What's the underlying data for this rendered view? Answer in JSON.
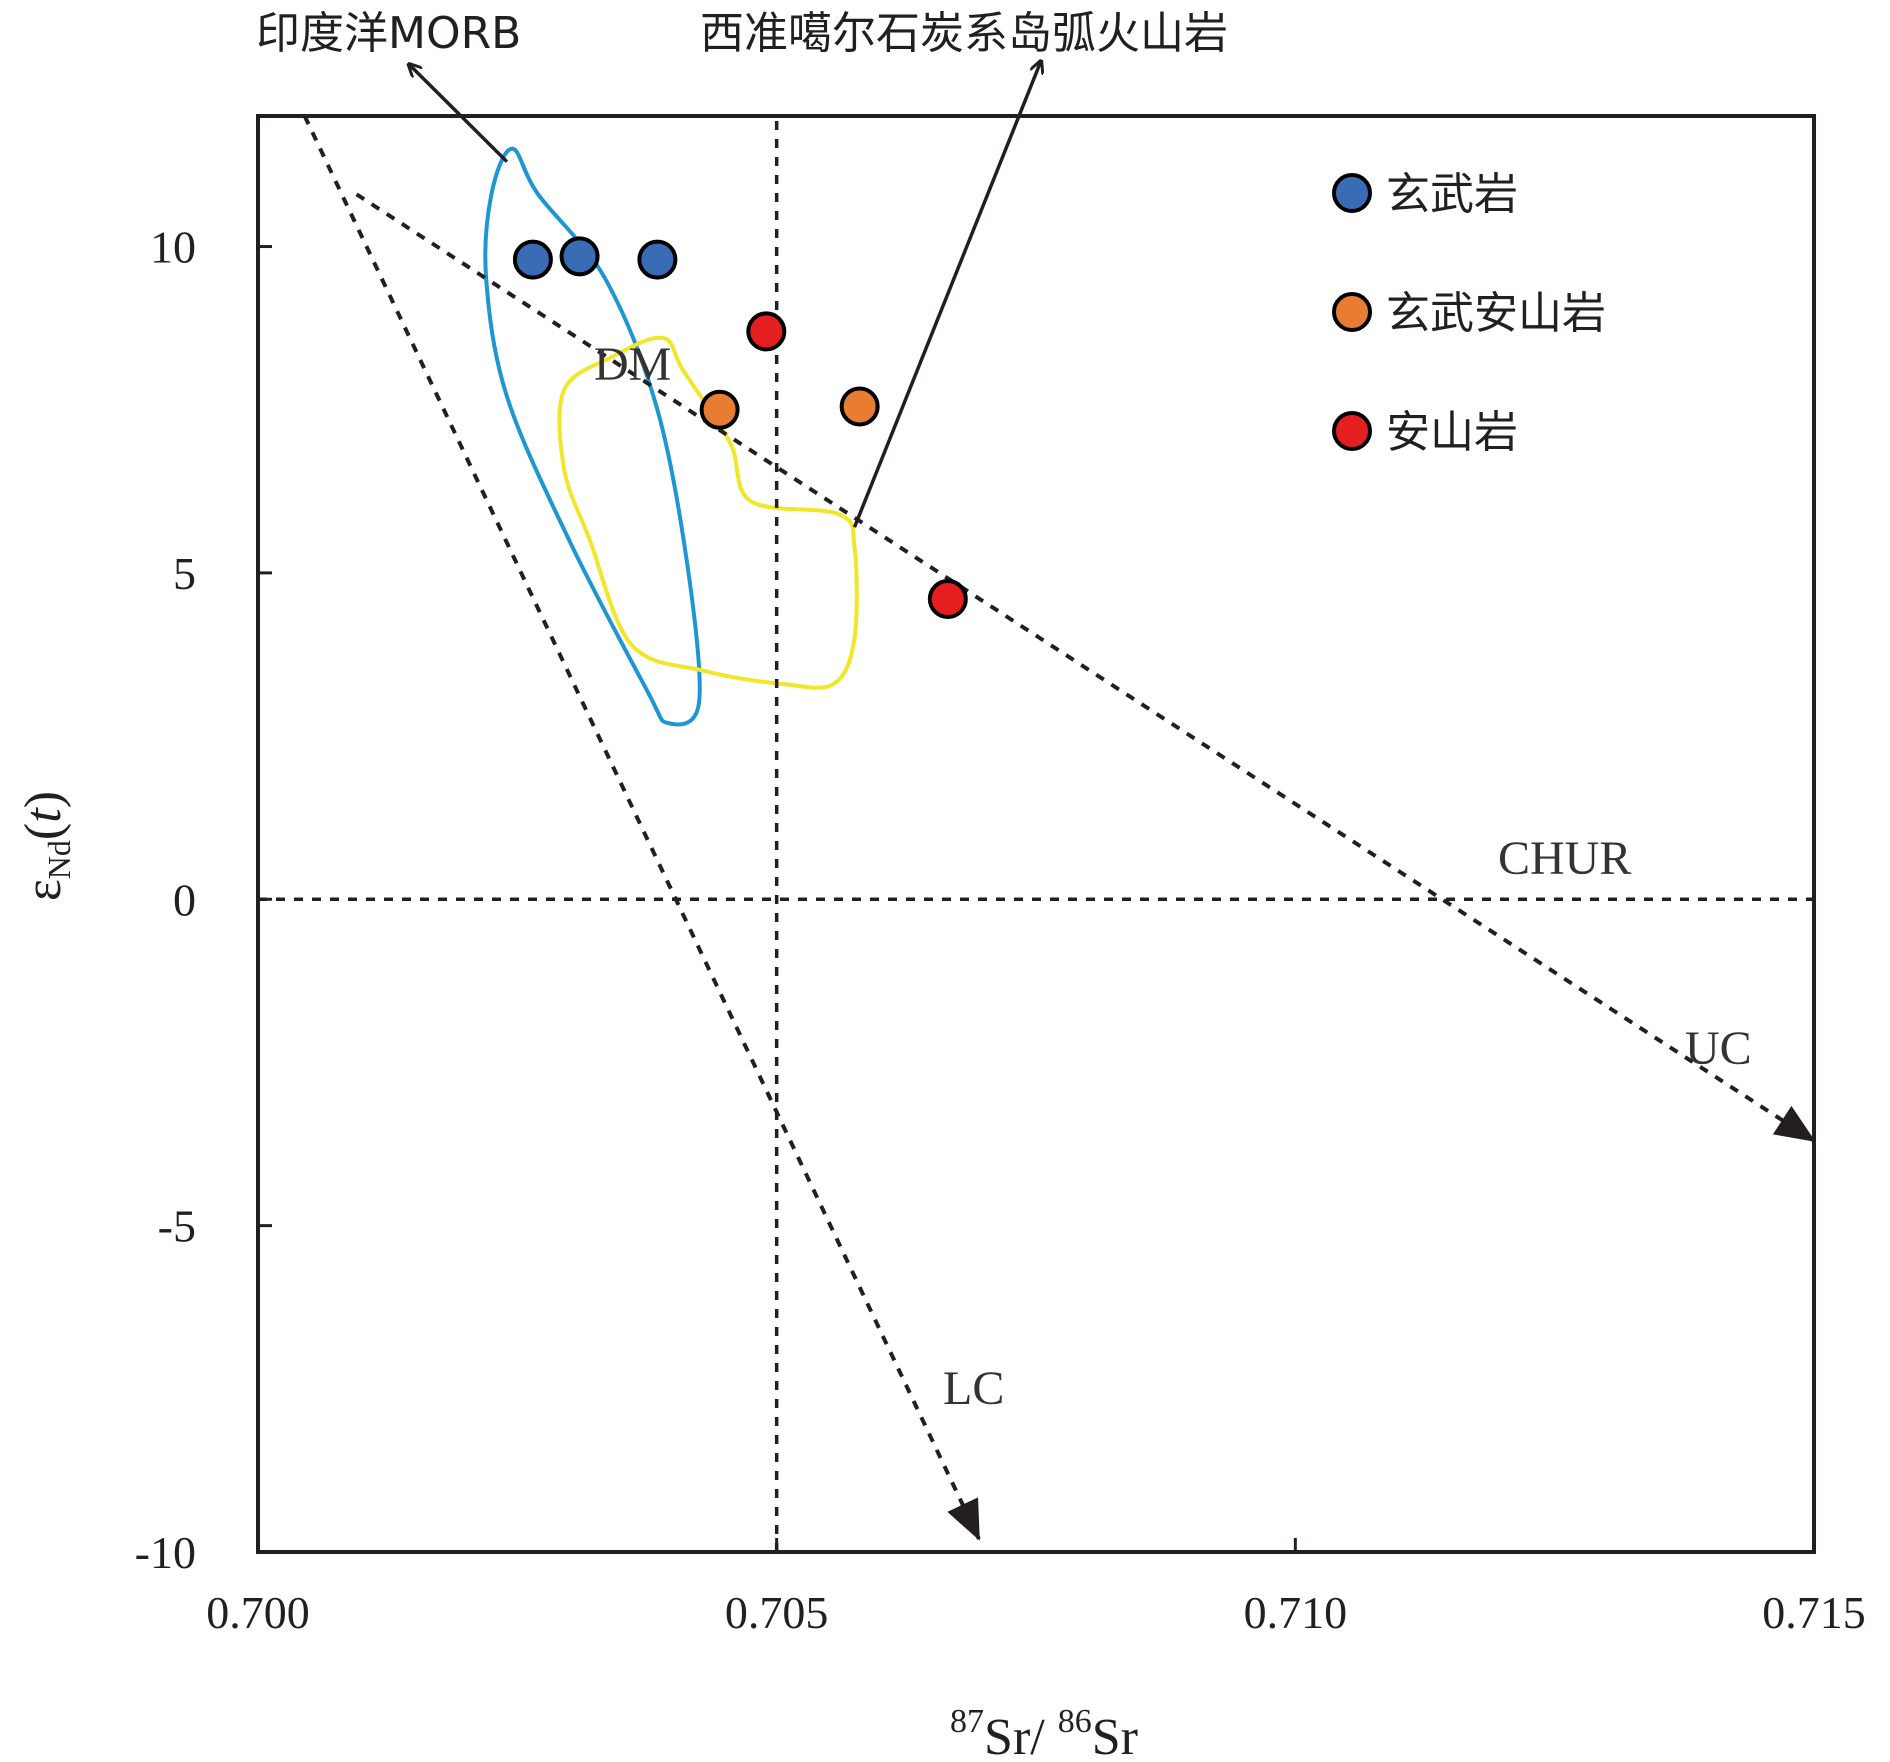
{
  "chart_data": {
    "type": "scatter",
    "xlabel": {
      "sup1": "87",
      "t1": "Sr/ ",
      "sup2": "86",
      "t2": "Sr"
    },
    "ylabel": {
      "eps": "ε",
      "sub": "Nd",
      "paren_open": "(",
      "t": "t",
      "paren_close": ")"
    },
    "xlim": [
      0.7,
      0.715
    ],
    "ylim": [
      -10,
      12
    ],
    "xticks": [
      "0.700",
      "0.705",
      "0.710",
      "0.715"
    ],
    "yticks": [
      "-10",
      "-5",
      "0",
      "5",
      "10"
    ],
    "series": [
      {
        "name": "玄武岩",
        "color": "#3a6bb5",
        "points": [
          [
            0.70265,
            9.8
          ],
          [
            0.7031,
            9.85
          ],
          [
            0.70385,
            9.8
          ]
        ]
      },
      {
        "name": "玄武安山岩",
        "color": "#e87d32",
        "points": [
          [
            0.70445,
            7.5
          ],
          [
            0.7058,
            7.55
          ]
        ]
      },
      {
        "name": "安山岩",
        "color": "#e51f1f",
        "points": [
          [
            0.7049,
            8.7
          ],
          [
            0.70665,
            4.6
          ]
        ]
      }
    ],
    "reference_lines": {
      "chur": {
        "label": "CHUR",
        "y": 0,
        "x_start": 0.7,
        "x_end": 0.715
      },
      "vertical": {
        "x": 0.705,
        "y_start": -10,
        "y_end": 12
      },
      "uc": {
        "label": "UC",
        "from": [
          0.70095,
          10.8
        ],
        "to": [
          0.715,
          -3.7
        ]
      },
      "lc": {
        "label": "LC",
        "from": [
          0.70045,
          12.0
        ],
        "to": [
          0.70695,
          -9.8
        ]
      }
    },
    "fields": [
      {
        "label": "印度洋MORB",
        "color": "#1e96d2",
        "outline": [
          [
            0.70245,
            11.5
          ],
          [
            0.7027,
            10.8
          ],
          [
            0.70335,
            9.5
          ],
          [
            0.70385,
            7.5
          ],
          [
            0.70415,
            5.0
          ],
          [
            0.70425,
            3.0
          ],
          [
            0.70395,
            2.7
          ],
          [
            0.70375,
            3.2
          ],
          [
            0.703,
            5.5
          ],
          [
            0.7024,
            7.7
          ],
          [
            0.7022,
            9.5
          ],
          [
            0.70225,
            10.8
          ]
        ]
      },
      {
        "label": "西准噶尔石炭系岛弧火山岩",
        "color": "#f2e62a",
        "outline": [
          [
            0.7039,
            8.6
          ],
          [
            0.7041,
            8.1
          ],
          [
            0.70455,
            7.0
          ],
          [
            0.70475,
            6.1
          ],
          [
            0.7056,
            5.9
          ],
          [
            0.70575,
            5.4
          ],
          [
            0.70575,
            4.0
          ],
          [
            0.70555,
            3.3
          ],
          [
            0.70505,
            3.3
          ],
          [
            0.7043,
            3.5
          ],
          [
            0.7036,
            3.9
          ],
          [
            0.7032,
            5.5
          ],
          [
            0.70295,
            6.6
          ],
          [
            0.70295,
            7.8
          ],
          [
            0.7034,
            8.3
          ]
        ]
      }
    ],
    "annotations": {
      "dm": "DM"
    },
    "callouts": {
      "morb": {
        "text": "印度洋MORB",
        "from": [
          0.7024,
          11.3
        ],
        "to": [
          0.70145,
          12.8
        ]
      },
      "arc": {
        "text": "西准噶尔石炭系岛弧火山岩",
        "from": [
          0.70575,
          5.7
        ],
        "to": [
          0.70755,
          12.85
        ]
      }
    },
    "legend": {
      "position": "top-right"
    }
  }
}
